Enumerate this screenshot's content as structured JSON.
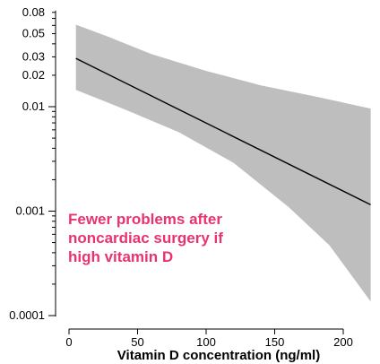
{
  "chart_data": {
    "type": "line",
    "title": "",
    "xlabel": "Vitamin D concentration (ng/ml)",
    "ylabel": "",
    "x_scale": "linear",
    "y_scale": "log",
    "xlim": [
      -10,
      230
    ],
    "ylim": [
      0.0001,
      0.08
    ],
    "x_ticks": [
      0,
      50,
      100,
      150,
      200
    ],
    "x_tick_labels": [
      "0",
      "50",
      "100",
      "150",
      "200"
    ],
    "y_ticks_major": [
      0.0001,
      0.001,
      0.01
    ],
    "y_tick_labels": [
      {
        "value": 0.08,
        "label": "0.08"
      },
      {
        "value": 0.05,
        "label": "0.05"
      },
      {
        "value": 0.03,
        "label": "0.03"
      },
      {
        "value": 0.02,
        "label": "0.02"
      },
      {
        "value": 0.01,
        "label": "0.01"
      },
      {
        "value": 0.001,
        "label": "0.001"
      },
      {
        "value": 0.0001,
        "label": "0.0001"
      }
    ],
    "y_ticks_minor": [
      0.0002,
      0.0003,
      0.0004,
      0.0005,
      0.0006,
      0.0007,
      0.0008,
      0.0009,
      0.002,
      0.003,
      0.004,
      0.005,
      0.006,
      0.007,
      0.008,
      0.009,
      0.02,
      0.03,
      0.04,
      0.05,
      0.06,
      0.07,
      0.08
    ],
    "series": [
      {
        "x": [
          5,
          220
        ],
        "y": [
          0.029,
          0.00115
        ],
        "color": "#000000"
      }
    ],
    "confidence_band": {
      "color": "#bebebe",
      "upper": [
        [
          5,
          0.061
        ],
        [
          30,
          0.046
        ],
        [
          60,
          0.032
        ],
        [
          100,
          0.022
        ],
        [
          140,
          0.016
        ],
        [
          180,
          0.0125
        ],
        [
          220,
          0.0096
        ]
      ],
      "lower": [
        [
          5,
          0.0145
        ],
        [
          40,
          0.0095
        ],
        [
          80,
          0.0057
        ],
        [
          120,
          0.0029
        ],
        [
          160,
          0.0011
        ],
        [
          190,
          0.00047
        ],
        [
          220,
          0.000136
        ]
      ]
    },
    "annotation": {
      "lines": [
        "Fewer problems after",
        "noncardiac surgery if",
        "high vitamin D"
      ],
      "color": "#e8336f"
    },
    "grid": false,
    "legend": "none"
  }
}
